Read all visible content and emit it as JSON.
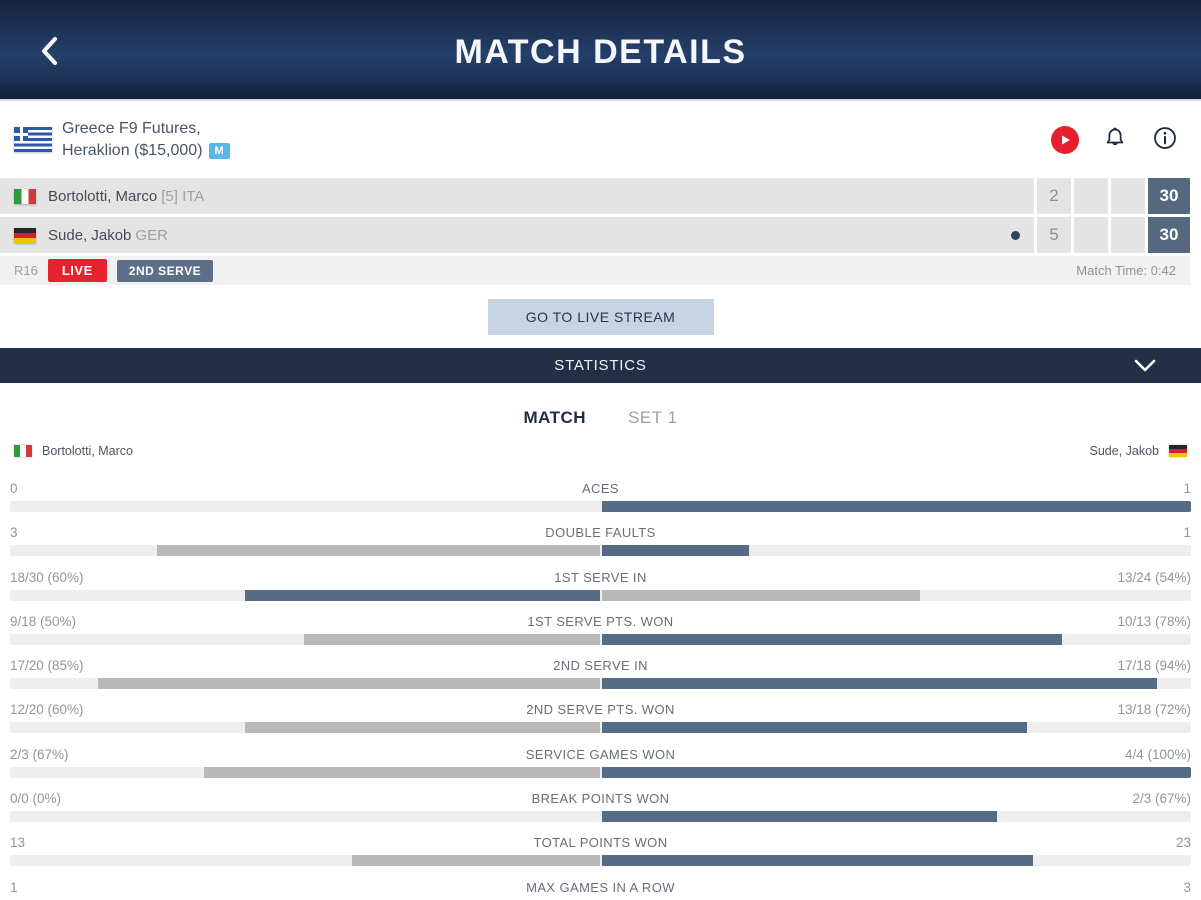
{
  "header": {
    "title": "MATCH DETAILS"
  },
  "tournament": {
    "name_line1": "Greece F9 Futures,",
    "name_line2": "Heraklion ($15,000)",
    "badge": "M",
    "flag": "greece"
  },
  "scoreboard": {
    "rows": [
      {
        "flag": "italy",
        "name": "Bortolotti, Marco",
        "suffix": "[5] ITA",
        "serving": false,
        "set1": "2",
        "points": "30"
      },
      {
        "flag": "germany",
        "name": "Sude, Jakob",
        "suffix": "GER",
        "serving": true,
        "set1": "5",
        "points": "30"
      }
    ]
  },
  "meta": {
    "round": "R16",
    "live_label": "LIVE",
    "serve_label": "2ND SERVE",
    "match_time": "Match Time: 0:42"
  },
  "stream_button": {
    "label": "GO TO LIVE STREAM"
  },
  "statistics": {
    "title": "STATISTICS",
    "tabs": [
      {
        "label": "MATCH",
        "active": true
      },
      {
        "label": "SET 1",
        "active": false
      }
    ],
    "player_left": "Bortolotti, Marco",
    "player_right": "Sude, Jakob",
    "rows": [
      {
        "label": "ACES",
        "left": "0",
        "right": "1",
        "left_pct": 0,
        "right_pct": 100,
        "left_color": "gray",
        "right_color": "blue"
      },
      {
        "label": "DOUBLE FAULTS",
        "left": "3",
        "right": "1",
        "left_pct": 75,
        "right_pct": 25,
        "left_color": "gray",
        "right_color": "blue"
      },
      {
        "label": "1ST SERVE IN",
        "left": "18/30 (60%)",
        "right": "13/24 (54%)",
        "left_pct": 60,
        "right_pct": 54,
        "left_color": "blue",
        "right_color": "gray"
      },
      {
        "label": "1ST SERVE PTS. WON",
        "left": "9/18 (50%)",
        "right": "10/13 (78%)",
        "left_pct": 50,
        "right_pct": 78,
        "left_color": "gray",
        "right_color": "blue"
      },
      {
        "label": "2ND SERVE IN",
        "left": "17/20 (85%)",
        "right": "17/18 (94%)",
        "left_pct": 85,
        "right_pct": 94,
        "left_color": "gray",
        "right_color": "blue"
      },
      {
        "label": "2ND SERVE PTS. WON",
        "left": "12/20 (60%)",
        "right": "13/18 (72%)",
        "left_pct": 60,
        "right_pct": 72,
        "left_color": "gray",
        "right_color": "blue"
      },
      {
        "label": "SERVICE GAMES WON",
        "left": "2/3 (67%)",
        "right": "4/4 (100%)",
        "left_pct": 67,
        "right_pct": 100,
        "left_color": "gray",
        "right_color": "blue"
      },
      {
        "label": "BREAK POINTS WON",
        "left": "0/0 (0%)",
        "right": "2/3 (67%)",
        "left_pct": 0,
        "right_pct": 67,
        "left_color": "gray",
        "right_color": "blue"
      },
      {
        "label": "TOTAL POINTS WON",
        "left": "13",
        "right": "23",
        "left_pct": 42,
        "right_pct": 73,
        "left_color": "gray",
        "right_color": "blue"
      },
      {
        "label": "MAX GAMES IN A ROW",
        "left": "1",
        "right": "3",
        "left_pct": null,
        "right_pct": null,
        "left_color": "gray",
        "right_color": "blue"
      }
    ]
  },
  "colors": {
    "header_navy": "#1e3257",
    "stats_bar_navy": "#232f47",
    "live_red": "#e52330",
    "serve_badge_slate": "#5c6f86",
    "points_cell_slate": "#56687f",
    "stream_button_blue": "#c7d5e2",
    "bar_blue": "#566b85",
    "bar_gray": "#b9b9b9",
    "m_badge_blue": "#58b6e9"
  }
}
